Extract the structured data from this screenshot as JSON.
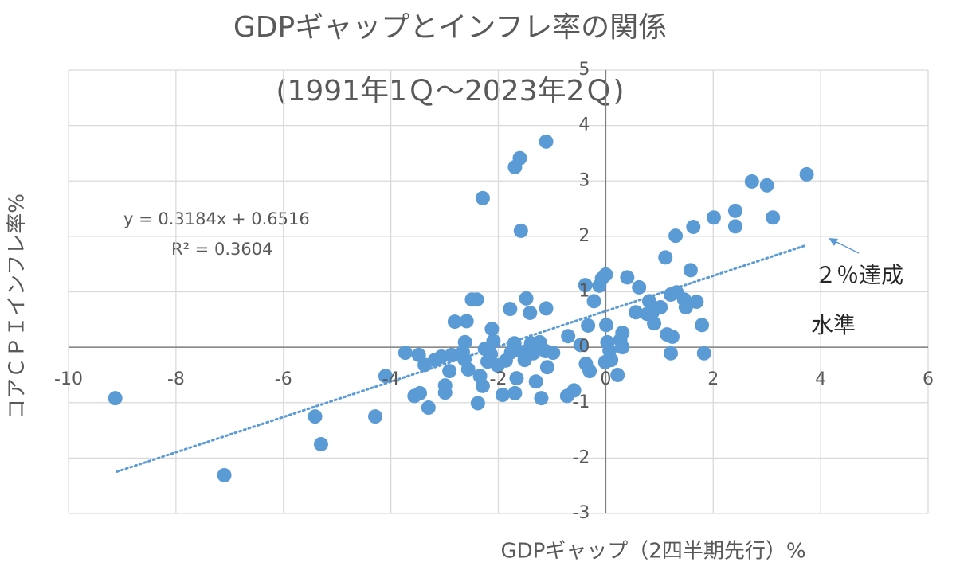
{
  "chart_data": {
    "type": "scatter",
    "title": "GDPギャップとインフレ率の関係",
    "subtitle": "(1991年1Ｑ～2023年2Ｑ)",
    "x_label": "GDPギャップ（2四半期先行）%",
    "y_label": "コアＣＰＩインフレ率%",
    "color": "#5b9bd5",
    "xlim": [
      -10,
      6
    ],
    "ylim": [
      -3,
      5
    ],
    "xticks": [
      -10,
      -8,
      -6,
      -4,
      -2,
      0,
      2,
      4,
      6
    ],
    "yticks": [
      -3,
      -2,
      -1,
      0,
      1,
      2,
      3,
      4,
      5
    ],
    "grid": true,
    "x": [
      -9.13,
      -7.1,
      -5.41,
      -5.3,
      -4.29,
      -4.1,
      -3.73,
      -3.56,
      -3.48,
      -3.46,
      -3.3,
      -3.37,
      -3.18,
      -3.06,
      -2.99,
      -2.99,
      -2.91,
      -2.87,
      -2.81,
      -2.63,
      -2.66,
      -2.62,
      -2.59,
      -2.56,
      -2.49,
      -2.4,
      -2.38,
      -2.34,
      -2.29,
      -2.29,
      -2.25,
      -2.2,
      -2.14,
      -2.12,
      -2.09,
      -2.01,
      -1.92,
      -1.86,
      -1.78,
      -1.76,
      -1.7,
      -1.69,
      -1.69,
      -1.66,
      -1.6,
      -1.58,
      -1.55,
      -1.51,
      -1.48,
      -1.43,
      -1.41,
      -1.39,
      -1.35,
      -1.3,
      -1.23,
      -1.2,
      -1.12,
      -1.11,
      -1.11,
      -1.09,
      -0.98,
      -0.72,
      -0.7,
      -0.59,
      -0.47,
      -0.38,
      -0.37,
      -0.33,
      -0.3,
      -0.22,
      -0.12,
      -0.07,
      -0.01,
      0.0,
      0.01,
      0.03,
      0.07,
      0.1,
      0.22,
      0.27,
      0.31,
      0.31,
      0.4,
      0.56,
      0.62,
      0.77,
      0.81,
      0.87,
      0.9,
      1.02,
      1.11,
      1.14,
      1.21,
      1.21,
      1.24,
      1.3,
      1.32,
      1.46,
      1.49,
      1.58,
      1.63,
      1.69,
      1.79,
      1.83,
      2.01,
      2.41,
      2.41,
      2.72,
      3.0,
      3.11,
      3.74
    ],
    "values": [
      -0.92,
      -2.31,
      -1.25,
      -1.75,
      -1.25,
      -0.52,
      -0.1,
      -0.88,
      -0.14,
      -0.83,
      -1.09,
      -0.32,
      -0.23,
      -0.17,
      -0.69,
      -0.82,
      -0.43,
      -0.14,
      0.46,
      -0.22,
      -0.09,
      0.09,
      0.47,
      -0.4,
      0.86,
      0.86,
      -1.01,
      -0.52,
      2.69,
      -0.7,
      -0.03,
      -0.26,
      -0.13,
      0.33,
      0.11,
      -0.33,
      -0.86,
      -0.24,
      0.69,
      -0.09,
      0.07,
      -0.83,
      3.25,
      -0.56,
      3.41,
      2.1,
      -0.09,
      -0.23,
      0.88,
      -0.04,
      0.62,
      0.07,
      -0.11,
      -0.62,
      0.09,
      -0.92,
      -0.07,
      3.71,
      0.7,
      -0.36,
      -0.1,
      -0.88,
      0.2,
      -0.78,
      0.04,
      1.12,
      -0.3,
      0.39,
      -0.43,
      0.83,
      1.11,
      1.24,
      -0.27,
      1.31,
      0.4,
      0.09,
      -0.06,
      -0.23,
      -0.5,
      0.13,
      0.26,
      0.0,
      1.26,
      0.63,
      1.08,
      0.6,
      0.83,
      0.63,
      0.43,
      0.72,
      1.62,
      0.23,
      0.95,
      -0.11,
      0.19,
      2.01,
      0.99,
      0.86,
      0.72,
      1.39,
      2.17,
      0.82,
      0.4,
      -0.11,
      2.34,
      2.46,
      2.18,
      2.99,
      2.92,
      2.34,
      3.12
    ],
    "trendline": {
      "slope": 0.3184,
      "intercept": 0.6516,
      "x": [
        -9.1,
        3.7
      ],
      "color": "#5b9bd5"
    },
    "equation": "y = 0.3184x + 0.6516",
    "r_squared": "R² = 0.3604",
    "annotation": [
      "２％達成",
      "水準"
    ]
  }
}
